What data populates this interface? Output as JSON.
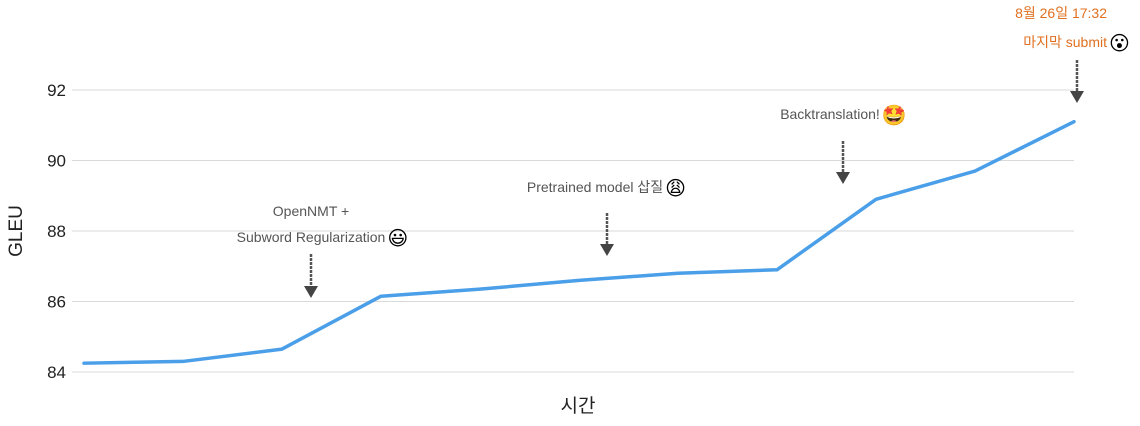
{
  "chart_data": {
    "type": "line",
    "title": "",
    "xlabel": "시간",
    "ylabel": "GLEU",
    "ylim": [
      84,
      93
    ],
    "yticks": [
      84,
      86,
      88,
      90,
      92
    ],
    "y_tick_labels": [
      "84",
      "86",
      "88",
      "90",
      "92"
    ],
    "grid": true,
    "legend": "none",
    "line_color": "#4a9fe8",
    "series": [
      {
        "values": [
          84.25,
          84.3,
          84.65,
          86.15,
          86.35,
          86.6,
          86.8,
          86.9,
          88.9,
          89.7,
          91.1
        ]
      }
    ],
    "annotations": [
      {
        "point_index": 2,
        "lines": [
          "OpenNMT +",
          "Subword Regularization"
        ],
        "emoji": "😃",
        "emoji_name": "grinning-face-icon"
      },
      {
        "point_index": 5,
        "lines": [
          "Pretrained model 삽질"
        ],
        "emoji": "😩",
        "emoji_name": "weary-face-icon"
      },
      {
        "point_index": 7,
        "lines": [
          "Backtranslation!"
        ],
        "emoji": "🤩",
        "emoji_name": "star-struck-face-icon"
      },
      {
        "point_index": 10,
        "lines": [
          "8월 26일 17:32",
          "마지막 submit"
        ],
        "emoji": "😮",
        "emoji_name": "surprised-face-icon",
        "color": "#e07020"
      }
    ]
  }
}
